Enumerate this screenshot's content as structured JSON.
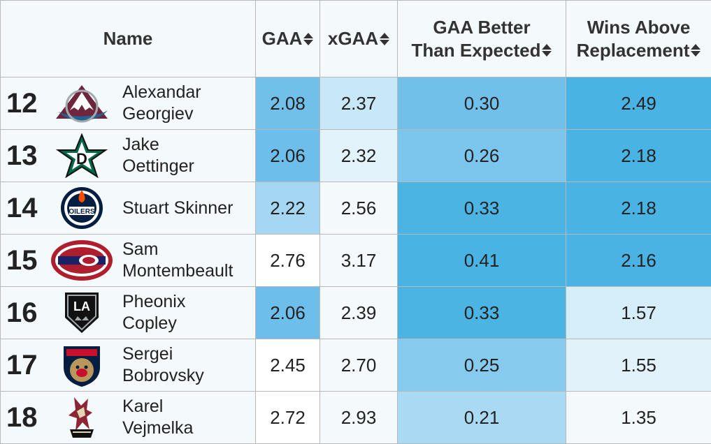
{
  "headers": {
    "name": "Name",
    "gaa": "GAA",
    "xgaa": "xGAA",
    "gbte": [
      "GAA Better",
      "Than Expected"
    ],
    "war": [
      "Wins Above",
      "Replacement"
    ]
  },
  "rows": [
    {
      "rank": "12",
      "first": "Alexandar",
      "last": "Georgiev",
      "team_icon": "avalanche-logo",
      "gaa": "2.08",
      "xgaa": "2.37",
      "gbte": "0.30",
      "war": "2.49",
      "bg": [
        "#71c0ea",
        "#c9e8f7",
        "#71c0ea",
        "#49b3e3"
      ]
    },
    {
      "rank": "13",
      "first": "Jake",
      "last": "Oettinger",
      "team_icon": "stars-logo",
      "gaa": "2.06",
      "xgaa": "2.32",
      "gbte": "0.26",
      "war": "2.18",
      "bg": [
        "#6dbeea",
        "#e2f3fb",
        "#7cc5ec",
        "#49b3e3"
      ]
    },
    {
      "rank": "14",
      "first": "Stuart Skinner",
      "last": "",
      "team_icon": "oilers-logo",
      "gaa": "2.22",
      "xgaa": "2.56",
      "gbte": "0.33",
      "war": "2.18",
      "bg": [
        "#a6d7f2",
        "#f4f9fc",
        "#4cb4e3",
        "#49b3e3"
      ]
    },
    {
      "rank": "15",
      "first": "Sam",
      "last": "Montembeault",
      "team_icon": "canadiens-logo",
      "gaa": "2.76",
      "xgaa": "3.17",
      "gbte": "0.41",
      "war": "2.16",
      "bg": [
        "#ffffff",
        "#f4f9fc",
        "#49b3e3",
        "#4ab3e3"
      ]
    },
    {
      "rank": "16",
      "first": "Pheonix",
      "last": "Copley",
      "team_icon": "kings-logo",
      "gaa": "2.06",
      "xgaa": "2.39",
      "gbte": "0.33",
      "war": "1.57",
      "bg": [
        "#6dbeea",
        "#f4f9fc",
        "#4cb4e3",
        "#d6eef9"
      ]
    },
    {
      "rank": "17",
      "first": "Sergei",
      "last": "Bobrovsky",
      "team_icon": "panthers-logo",
      "gaa": "2.45",
      "xgaa": "2.70",
      "gbte": "0.25",
      "war": "1.55",
      "bg": [
        "#ffffff",
        "#f4f9fc",
        "#86caee",
        "#e1f2fb"
      ]
    },
    {
      "rank": "18",
      "first": "Karel",
      "last": "Vejmelka",
      "team_icon": "coyotes-logo",
      "gaa": "2.72",
      "xgaa": "2.93",
      "gbte": "0.21",
      "war": "1.35",
      "bg": [
        "#ffffff",
        "#f4f9fc",
        "#a9d9f3",
        "#f4f9fc"
      ]
    }
  ]
}
